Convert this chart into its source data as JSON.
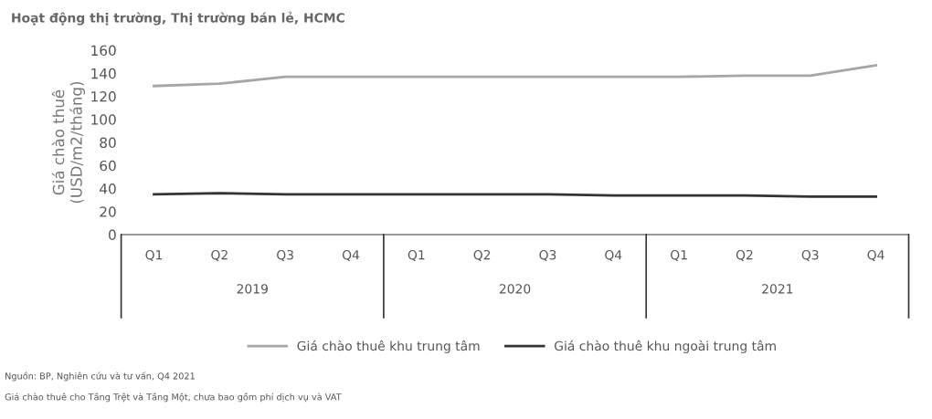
{
  "chart_data": {
    "type": "line",
    "title": "Hoạt động thị trường, Thị trường bán lẻ, HCMC",
    "ylabel": "Giá chào thuê\n(USD/m2/tháng)",
    "categories": [
      "Q1",
      "Q2",
      "Q3",
      "Q4",
      "Q1",
      "Q2",
      "Q3",
      "Q4",
      "Q1",
      "Q2",
      "Q3",
      "Q4"
    ],
    "series": [
      {
        "name": "Giá chào thuê khu trung tâm",
        "color": "#a6a6a6",
        "values": [
          129,
          131,
          137,
          137,
          137,
          137,
          137,
          137,
          137,
          138,
          138,
          147
        ]
      },
      {
        "name": "Giá chào thuê khu ngoài trung tâm",
        "color": "#333333",
        "values": [
          35,
          36,
          35,
          35,
          35,
          35,
          35,
          34,
          34,
          34,
          33,
          33
        ]
      }
    ],
    "ylim": [
      0,
      160
    ],
    "yticks": [
      0,
      20,
      40,
      60,
      80,
      100,
      120,
      140,
      160
    ],
    "grid": false,
    "legend": "bottom",
    "marker": "none",
    "line_style": "solid",
    "annotations": [
      "2019",
      "2020",
      "2021",
      "Nguồn: BP, Nghiên cứu và tư vấn, Q4 2021",
      "Giá chào thuê cho Tầng Trệt và Tầng Một, chưa bao gồm phí dịch vụ và VAT"
    ]
  }
}
